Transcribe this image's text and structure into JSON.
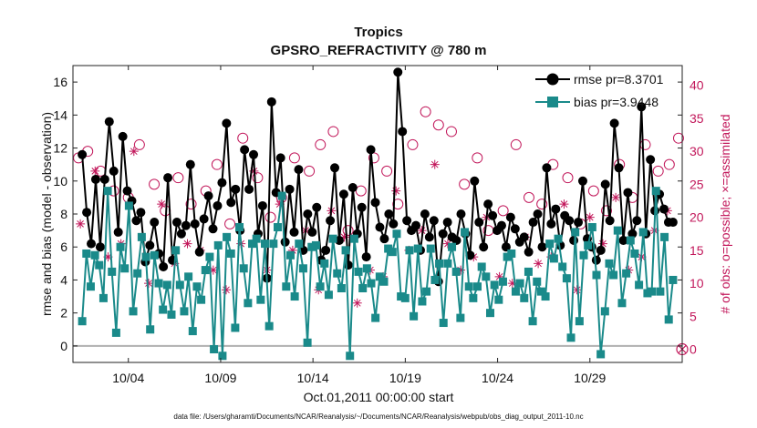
{
  "chart_data": {
    "type": "line",
    "title": "Tropics",
    "subtitle": "GPSRO_REFRACTIVITY @ 780 m",
    "xlabel": "Oct.01,2011 00:00:00 start",
    "ylabel": "rmse and bias (model - observation)",
    "y2label": "# of obs: o=possible; ×=assimilated",
    "footnote": "data file: /Users/gharamti/Documents/NCAR/Reanalysis/~/Documents/NCAR/Reanalysis/webpub/obs_diag_output_2011-10.nc",
    "xlim": [
      0,
      33
    ],
    "ylim": [
      -1,
      17
    ],
    "y2lim": [
      -2,
      43
    ],
    "x_tick_values": [
      3,
      8,
      13,
      18,
      23,
      28
    ],
    "x_tick_labels": [
      "10/04",
      "10/09",
      "10/14",
      "10/19",
      "10/24",
      "10/29"
    ],
    "y_ticks": [
      0,
      2,
      4,
      6,
      8,
      10,
      12,
      14,
      16
    ],
    "y2_ticks": [
      0,
      5,
      10,
      15,
      20,
      25,
      30,
      35,
      40
    ],
    "legend_position": "top-right",
    "colors": {
      "rmse": "#000000",
      "bias": "#1a8a8a",
      "obs": "#c2185b",
      "zero_line": "#b0b0b0"
    },
    "series": [
      {
        "name": "rmse",
        "legend_label": "rmse pr=8.3701",
        "values": [
          11.6,
          8.1,
          6.2,
          10.1,
          6.0,
          10.1,
          13.6,
          10.6,
          6.9,
          12.7,
          9.4,
          8.8,
          7.6,
          8.1,
          5.1,
          6.1,
          7.5,
          5.6,
          4.8,
          10.2,
          5.2,
          7.5,
          6.8,
          7.3,
          11.0,
          7.4,
          5.7,
          7.7,
          9.1,
          7.1,
          8.5,
          9.9,
          13.5,
          8.7,
          9.5,
          7.0,
          11.9,
          9.5,
          11.6,
          6.8,
          8.5,
          4.1,
          14.8,
          9.3,
          11.4,
          6.3,
          9.5,
          6.9,
          10.7,
          5.8,
          8.0,
          6.9,
          8.4,
          5.2,
          5.8,
          7.6,
          10.8,
          6.4,
          9.2,
          4.9,
          9.6,
          6.8,
          8.4,
          5.4,
          11.9,
          8.7,
          7.2,
          6.5,
          8.0,
          7.4,
          16.6,
          13.0,
          7.6,
          7.0,
          7.3,
          5.8,
          8.0,
          6.6,
          7.6,
          3.9,
          6.8,
          7.5,
          6.6,
          6.4,
          8.0,
          6.8,
          5.5,
          10.0,
          7.5,
          6.0,
          8.6,
          7.9,
          7.0,
          7.3,
          6.0,
          7.8,
          7.1,
          6.3,
          6.6,
          5.7,
          7.5,
          8.0,
          6.0,
          10.8,
          7.4,
          8.3,
          6.1,
          7.9,
          7.6,
          6.4,
          7.5,
          10.0,
          6.5,
          6.0,
          5.2,
          5.8,
          9.8,
          7.6,
          13.5,
          10.8,
          6.4,
          9.3,
          6.8,
          7.6,
          14.5,
          6.8,
          11.3,
          8.2,
          9.2,
          8.3,
          7.5,
          7.5
        ]
      },
      {
        "name": "bias",
        "legend_label": "bias pr=3.9448",
        "values": [
          1.5,
          5.6,
          3.6,
          5.5,
          4.9,
          2.9,
          9.4,
          4.5,
          0.8,
          6.0,
          4.7,
          8.5,
          2.1,
          4.4,
          6.6,
          5.4,
          1.0,
          5.5,
          3.8,
          2.2,
          3.7,
          1.9,
          5.8,
          3.7,
          2.1,
          4.2,
          0.9,
          3.6,
          2.8,
          4.6,
          5.4,
          -0.2,
          6.1,
          -0.6,
          6.6,
          5.6,
          1.1,
          7.2,
          4.7,
          2.6,
          6.2,
          6.5,
          2.8,
          6.2,
          1.2,
          6.2,
          7.2,
          9.1,
          3.6,
          5.5,
          3.0,
          6.2,
          4.7,
          0.2,
          6.0,
          6.1,
          3.6,
          5.0,
          3.1,
          6.5,
          4.4,
          3.5,
          5.8,
          -0.6,
          6.5,
          4.5,
          3.5,
          4.7,
          3.8,
          1.7,
          4.2,
          3.9,
          5.9,
          5.7,
          6.8,
          3.0,
          2.9,
          5.8,
          1.8,
          5.9,
          2.7,
          3.3,
          5.9,
          4.0,
          5.0,
          1.4,
          5.0,
          6.0,
          4.5,
          1.7,
          6.9,
          3.6,
          2.9,
          3.6,
          4.8,
          4.2,
          2.0,
          3.7,
          2.8,
          3.9,
          5.4,
          5.6,
          3.3,
          3.8,
          2.9,
          4.5,
          1.5,
          3.9,
          3.3,
          3.0,
          6.2,
          5.3,
          6.5,
          4.8,
          4.1,
          0.5,
          6.9,
          1.5,
          5.5,
          6.1,
          7.2,
          4.3,
          -0.5,
          2.1,
          5.0,
          4.3,
          7.0,
          2.6,
          4.4,
          6.4,
          5.6,
          3.7,
          6.9,
          3.2,
          3.3,
          9.4,
          3.3,
          6.6,
          1.6,
          4.0
        ]
      },
      {
        "name": "obs_possible",
        "axis": "right",
        "marker": "circle",
        "x": [
          0.3,
          0.8,
          1.5,
          2.2,
          3.0,
          3.6,
          4.4,
          5.0,
          5.7,
          6.4,
          7.2,
          7.8,
          8.5,
          9.2,
          10.0,
          10.7,
          11.3,
          12.0,
          12.8,
          13.4,
          14.1,
          14.9,
          15.6,
          16.3,
          17.0,
          17.6,
          18.4,
          19.1,
          19.8,
          20.5,
          21.2,
          21.9,
          22.5,
          23.3,
          24.0,
          24.7,
          25.4,
          26.0,
          26.8,
          27.5,
          28.2,
          28.9,
          29.6,
          30.3,
          31.0,
          31.7,
          32.3,
          32.8
        ],
        "values": [
          29,
          30,
          27,
          24,
          23,
          31,
          25,
          21,
          26,
          22,
          24,
          28,
          19,
          32,
          26,
          20,
          23,
          29,
          27,
          31,
          33,
          18,
          24,
          29,
          27,
          22,
          31,
          36,
          34,
          33,
          25,
          29,
          18,
          21,
          31,
          23,
          22,
          28,
          26,
          19,
          24,
          21,
          28,
          23,
          31,
          27,
          28,
          32
        ]
      },
      {
        "name": "obs_assimilated",
        "axis": "right",
        "marker": "asterisk",
        "x": [
          0.4,
          1.2,
          1.9,
          2.6,
          3.3,
          4.1,
          4.8,
          5.5,
          6.2,
          6.9,
          7.6,
          8.3,
          9.1,
          9.8,
          10.5,
          11.2,
          11.9,
          12.6,
          13.3,
          14.0,
          14.7,
          15.4,
          16.1,
          16.8,
          17.5,
          18.2,
          18.9,
          19.6,
          20.3,
          21.0,
          21.7,
          22.4,
          23.1,
          23.8,
          24.5,
          25.2,
          25.9,
          26.6,
          27.3,
          28.0,
          28.7,
          29.4,
          30.1,
          30.8,
          31.5,
          32.2
        ],
        "values": [
          19,
          27,
          14,
          16,
          30,
          10,
          22,
          13,
          16,
          15,
          12,
          9,
          16,
          27,
          12,
          22,
          15,
          18,
          9,
          21,
          17,
          7,
          12,
          11,
          24,
          15,
          18,
          28,
          16,
          12,
          14,
          20,
          11,
          10,
          17,
          13,
          14,
          22,
          9,
          20,
          16,
          23,
          12,
          14,
          18,
          21
        ]
      }
    ]
  }
}
